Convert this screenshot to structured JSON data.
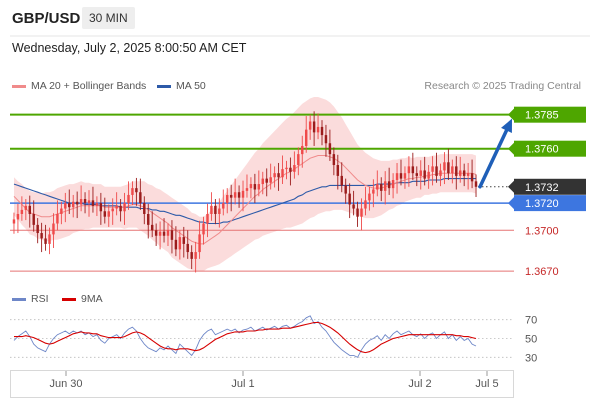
{
  "header": {
    "symbol": "GBP/USD",
    "timeframe": "30 MIN",
    "datetime": "Wednesday, July 2, 2025 8:00:50 AM CET",
    "credit": "Research © 2025 Trading Central"
  },
  "colors": {
    "candle_up": "#ef4a4a",
    "candle_down": "#9b1c1c",
    "bollinger_fill": "#fbdcdc",
    "ma20": "#f08b8b",
    "ma50": "#2d5aa8",
    "resistance": "#4ea600",
    "pivot": "#3d76e0",
    "support": "#e57373",
    "price_label": "#333333",
    "arrow": "#1f5fb8",
    "rsi": "#6e87c8",
    "rsi_ma": "#d60000"
  },
  "chart_data": [
    {
      "type": "candlestick",
      "title": "GBP/USD",
      "timeframe": "30 MIN",
      "legend": [
        "MA 20 + Bollinger Bands",
        "MA 50"
      ],
      "x_tick_labels": [
        "Jun 30",
        "Jul 1",
        "Jul 2",
        "Jul 5"
      ],
      "ylim": [
        1.3662,
        1.3798
      ],
      "y_levels": [
        {
          "label": "1.3785",
          "value": 1.3785,
          "kind": "resistance"
        },
        {
          "label": "1.3760",
          "value": 1.376,
          "kind": "resistance"
        },
        {
          "label": "1.3732",
          "value": 1.3732,
          "kind": "last"
        },
        {
          "label": "1.3720",
          "value": 1.372,
          "kind": "pivot"
        },
        {
          "label": "1.3700",
          "value": 1.37,
          "kind": "support"
        },
        {
          "label": "1.3670",
          "value": 1.367,
          "kind": "support"
        }
      ],
      "close": [
        1.3708,
        1.3712,
        1.3715,
        1.3718,
        1.3712,
        1.3704,
        1.3698,
        1.3694,
        1.369,
        1.3697,
        1.3705,
        1.3712,
        1.3716,
        1.372,
        1.3717,
        1.3721,
        1.3719,
        1.3723,
        1.372,
        1.3722,
        1.3718,
        1.372,
        1.3714,
        1.371,
        1.3714,
        1.3716,
        1.3718,
        1.3714,
        1.372,
        1.3726,
        1.3731,
        1.3728,
        1.372,
        1.3712,
        1.3704,
        1.37,
        1.3696,
        1.3699,
        1.3696,
        1.37,
        1.3693,
        1.3686,
        1.3695,
        1.369,
        1.3684,
        1.3679,
        1.3684,
        1.3697,
        1.3705,
        1.3712,
        1.3718,
        1.3712,
        1.3716,
        1.372,
        1.3726,
        1.3724,
        1.3728,
        1.3724,
        1.3729,
        1.3731,
        1.3734,
        1.373,
        1.3734,
        1.3738,
        1.3735,
        1.3739,
        1.3742,
        1.3739,
        1.3745,
        1.3746,
        1.3743,
        1.3748,
        1.3756,
        1.3762,
        1.3774,
        1.378,
        1.3772,
        1.3776,
        1.377,
        1.3764,
        1.3756,
        1.3748,
        1.374,
        1.3733,
        1.3727,
        1.3719,
        1.3716,
        1.371,
        1.3716,
        1.3722,
        1.3727,
        1.373,
        1.3734,
        1.3729,
        1.3736,
        1.3731,
        1.3737,
        1.3742,
        1.3738,
        1.3742,
        1.3747,
        1.3742,
        1.374,
        1.3744,
        1.3738,
        1.3743,
        1.3747,
        1.374,
        1.3744,
        1.375,
        1.3742,
        1.3747,
        1.374,
        1.3744,
        1.374,
        1.3742,
        1.3736,
        1.3732
      ],
      "ma20": [
        1.3725,
        1.3722,
        1.3719,
        1.3716,
        1.3713,
        1.3712,
        1.3711,
        1.371,
        1.371,
        1.371,
        1.3711,
        1.3712,
        1.3713,
        1.3714,
        1.3715,
        1.3716,
        1.3717,
        1.3718,
        1.3718,
        1.3718,
        1.3718,
        1.3718,
        1.3718,
        1.3717,
        1.3717,
        1.3717,
        1.3717,
        1.3717,
        1.3717,
        1.3718,
        1.3719,
        1.3719,
        1.3718,
        1.3717,
        1.3715,
        1.3713,
        1.3711,
        1.3709,
        1.3707,
        1.3705,
        1.3702,
        1.37,
        1.3698,
        1.3696,
        1.3694,
        1.3692,
        1.3691,
        1.369,
        1.369,
        1.3692,
        1.3694,
        1.3696,
        1.3698,
        1.3701,
        1.3704,
        1.3707,
        1.371,
        1.3713,
        1.3716,
        1.3719,
        1.3722,
        1.3725,
        1.3727,
        1.373,
        1.3732,
        1.3734,
        1.3736,
        1.3738,
        1.374,
        1.3742,
        1.3743,
        1.3745,
        1.3747,
        1.3749,
        1.3751,
        1.3753,
        1.3754,
        1.3755,
        1.3755,
        1.3755,
        1.3754,
        1.3753,
        1.3751,
        1.3749,
        1.3746,
        1.3743,
        1.374,
        1.3737,
        1.3735,
        1.3733,
        1.3732,
        1.3731,
        1.3731,
        1.3731,
        1.3732,
        1.3733,
        1.3734,
        1.3735,
        1.3736,
        1.3737,
        1.3738,
        1.3738,
        1.3739,
        1.3739,
        1.374,
        1.374,
        1.3741,
        1.3741,
        1.3742,
        1.3742,
        1.3742,
        1.3742,
        1.3742,
        1.3742,
        1.3742,
        1.3742,
        1.3742,
        1.3741
      ],
      "ma50": [
        1.3734,
        1.3733,
        1.3732,
        1.3731,
        1.373,
        1.3729,
        1.3728,
        1.3727,
        1.3726,
        1.3725,
        1.3724,
        1.3723,
        1.3722,
        1.3721,
        1.372,
        1.372,
        1.372,
        1.372,
        1.3719,
        1.3719,
        1.3719,
        1.3719,
        1.3718,
        1.3718,
        1.3718,
        1.3718,
        1.3718,
        1.3717,
        1.3717,
        1.3717,
        1.3717,
        1.3717,
        1.3716,
        1.3716,
        1.3716,
        1.3715,
        1.3715,
        1.3714,
        1.3714,
        1.3713,
        1.3712,
        1.3711,
        1.3711,
        1.371,
        1.3709,
        1.3708,
        1.3707,
        1.3706,
        1.3706,
        1.3705,
        1.3705,
        1.3705,
        1.3705,
        1.3706,
        1.3706,
        1.3707,
        1.3708,
        1.3709,
        1.371,
        1.3711,
        1.3712,
        1.3713,
        1.3714,
        1.3715,
        1.3716,
        1.3717,
        1.3718,
        1.3719,
        1.372,
        1.3721,
        1.3722,
        1.3723,
        1.3725,
        1.3726,
        1.3728,
        1.3729,
        1.373,
        1.3731,
        1.3732,
        1.3732,
        1.3733,
        1.3733,
        1.3733,
        1.3733,
        1.3733,
        1.3733,
        1.3733,
        1.3733,
        1.3733,
        1.3733,
        1.3733,
        1.3733,
        1.3734,
        1.3734,
        1.3734,
        1.3734,
        1.3734,
        1.3735,
        1.3735,
        1.3735,
        1.3735,
        1.3736,
        1.3736,
        1.3736,
        1.3736,
        1.3737,
        1.3737,
        1.3737,
        1.3737,
        1.3738,
        1.3738,
        1.3738,
        1.3738,
        1.3738,
        1.3738,
        1.3738,
        1.3738,
        1.3738
      ],
      "bollinger_width": [
        0.0014,
        0.0014,
        0.0015,
        0.0015,
        0.0016,
        0.0016,
        0.0017,
        0.0017,
        0.0018,
        0.0018,
        0.0018,
        0.0019,
        0.0019,
        0.0019,
        0.0019,
        0.0018,
        0.0018,
        0.0018,
        0.0017,
        0.0017,
        0.0016,
        0.0016,
        0.0016,
        0.0015,
        0.0015,
        0.0015,
        0.0015,
        0.0015,
        0.0016,
        0.0016,
        0.0017,
        0.0017,
        0.0018,
        0.0019,
        0.0019,
        0.002,
        0.002,
        0.0021,
        0.0021,
        0.0021,
        0.0022,
        0.0022,
        0.0022,
        0.0022,
        0.0022,
        0.0021,
        0.0021,
        0.002,
        0.002,
        0.002,
        0.0021,
        0.0022,
        0.0023,
        0.0024,
        0.0025,
        0.0026,
        0.0027,
        0.0028,
        0.0029,
        0.003,
        0.0031,
        0.0032,
        0.0033,
        0.0034,
        0.0035,
        0.0036,
        0.0037,
        0.0038,
        0.0039,
        0.004,
        0.0041,
        0.0042,
        0.0043,
        0.0044,
        0.0044,
        0.0044,
        0.0044,
        0.0043,
        0.0042,
        0.0041,
        0.004,
        0.0038,
        0.0036,
        0.0034,
        0.0032,
        0.003,
        0.0028,
        0.0026,
        0.0025,
        0.0024,
        0.0023,
        0.0022,
        0.0021,
        0.002,
        0.0019,
        0.0018,
        0.0018,
        0.0017,
        0.0017,
        0.0016,
        0.0016,
        0.0015,
        0.0015,
        0.0015,
        0.0014,
        0.0014,
        0.0014,
        0.0014,
        0.0014,
        0.0014,
        0.0014,
        0.0014,
        0.0014,
        0.0014,
        0.0014,
        0.0014,
        0.0014,
        0.0014
      ],
      "projection": {
        "from": 1.3732,
        "to": 1.3785
      }
    },
    {
      "type": "line",
      "title": "RSI",
      "legend": [
        "RSI",
        "9MA"
      ],
      "ylim": [
        25,
        75
      ],
      "y_tick_labels": [
        "70",
        "50",
        "30"
      ],
      "y_ticks": [
        70,
        50,
        30
      ],
      "rsi": [
        48,
        52,
        55,
        58,
        52,
        44,
        40,
        38,
        36,
        44,
        50,
        54,
        56,
        58,
        55,
        58,
        56,
        58,
        54,
        56,
        52,
        54,
        48,
        45,
        50,
        52,
        54,
        50,
        56,
        60,
        62,
        58,
        50,
        44,
        40,
        38,
        36,
        40,
        38,
        42,
        38,
        34,
        44,
        40,
        36,
        32,
        38,
        48,
        54,
        58,
        60,
        54,
        56,
        58,
        60,
        58,
        60,
        56,
        59,
        60,
        62,
        58,
        60,
        62,
        59,
        61,
        63,
        60,
        63,
        64,
        61,
        63,
        66,
        68,
        72,
        74,
        66,
        68,
        62,
        58,
        52,
        46,
        42,
        38,
        35,
        32,
        32,
        30,
        38,
        44,
        48,
        50,
        53,
        48,
        54,
        50,
        55,
        58,
        54,
        56,
        58,
        54,
        52,
        55,
        50,
        54,
        56,
        50,
        54,
        57,
        50,
        54,
        48,
        52,
        48,
        50,
        44,
        42
      ],
      "rsi_ma": [
        52,
        52,
        52,
        53,
        52,
        51,
        49,
        47,
        45,
        44,
        45,
        47,
        49,
        51,
        53,
        55,
        56,
        57,
        56,
        56,
        55,
        55,
        53,
        52,
        51,
        51,
        51,
        51,
        52,
        54,
        56,
        57,
        56,
        54,
        51,
        48,
        45,
        42,
        40,
        39,
        39,
        38,
        39,
        39,
        39,
        38,
        37,
        38,
        40,
        43,
        46,
        49,
        51,
        53,
        55,
        56,
        57,
        57,
        57,
        58,
        58,
        58,
        59,
        59,
        60,
        60,
        60,
        60,
        61,
        61,
        61,
        62,
        63,
        64,
        65,
        66,
        67,
        67,
        66,
        64,
        62,
        59,
        56,
        52,
        48,
        44,
        41,
        38,
        36,
        35,
        36,
        38,
        41,
        44,
        46,
        48,
        50,
        51,
        52,
        53,
        54,
        54,
        54,
        54,
        54,
        54,
        54,
        54,
        54,
        54,
        54,
        54,
        53,
        53,
        52,
        52,
        51,
        50
      ]
    }
  ]
}
